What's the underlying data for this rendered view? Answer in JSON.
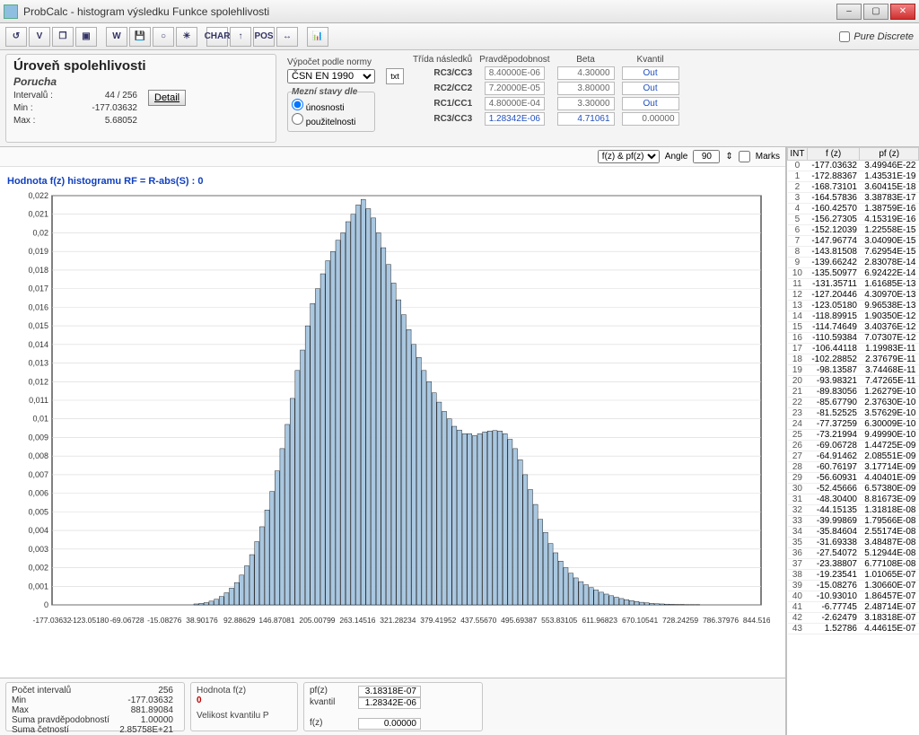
{
  "window": {
    "title": "ProbCalc - histogram výsledku Funkce spolehlivosti",
    "pure_discrete_label": "Pure Discrete"
  },
  "toolbar": {
    "buttons": [
      "↺",
      "V",
      "❐",
      "▣",
      "W",
      "💾",
      "○",
      "☀",
      "CHAR",
      "↑",
      "POS",
      "↔",
      "📊"
    ]
  },
  "reliability_panel": {
    "title": "Úroveň spolehlivosti",
    "subtitle": "Porucha",
    "rows": [
      {
        "label": "Intervalů :",
        "value": "44 / 256"
      },
      {
        "label": "Min :",
        "value": "-177.03632"
      },
      {
        "label": "Max :",
        "value": "5.68052"
      }
    ],
    "detail_label": "Detail"
  },
  "norm_panel": {
    "calc_label": "Výpočet podle normy",
    "norm_options": [
      "ČSN EN 1990"
    ],
    "norm_selected": "ČSN EN 1990",
    "limit_legend": "Mezní stavy dle",
    "opt_unosnosti": "únosnosti",
    "opt_pouzitelnosti": "použitelnosti",
    "txt_label": "txt"
  },
  "class_table": {
    "headers": [
      "Třída následků",
      "Pravděpodobnost",
      "Beta",
      "Kvantil"
    ],
    "rows": [
      {
        "label": "RC3/CC3",
        "p": "8.40000E-06",
        "beta": "4.30000",
        "k": "Out <Min,Max>"
      },
      {
        "label": "RC2/CC2",
        "p": "7.20000E-05",
        "beta": "3.80000",
        "k": "Out <Min,Max>"
      },
      {
        "label": "RC1/CC1",
        "p": "4.80000E-04",
        "beta": "3.30000",
        "k": "Out <Min,Max>"
      },
      {
        "label": "RC3/CC3",
        "p": "1.28342E-06",
        "beta": "4.71061",
        "k": "0.00000",
        "result": true
      }
    ]
  },
  "chart_toolbar": {
    "mode_label": "f(z) & pf(z)",
    "angle_label": "Angle",
    "angle_value": "90",
    "marks_label": "Marks"
  },
  "chart": {
    "title": "Hodnota f(z) histogramu RF = R-abs(S) : 0",
    "type": "histogram",
    "background_color": "#ffffff",
    "grid_color": "#d8d8d8",
    "bar_fill": "#a9c7e0",
    "bar_stroke": "#000000",
    "axis_color": "#000000",
    "ylim": [
      0,
      0.022
    ],
    "yticks": [
      0,
      0.001,
      0.002,
      0.003,
      0.004,
      0.005,
      0.006,
      0.007,
      0.008,
      0.009,
      0.01,
      0.011,
      0.012,
      0.013,
      0.014,
      0.015,
      0.016,
      0.017,
      0.018,
      0.019,
      0.02,
      0.021,
      0.022
    ],
    "xlim": [
      -177.03632,
      844.51694
    ],
    "xticks": [
      -177.03632,
      -123.0518,
      -69.06728,
      -15.08276,
      38.90176,
      92.88629,
      146.87081,
      205.00799,
      263.14516,
      321.28234,
      379.41952,
      437.5567,
      495.69387,
      553.83105,
      611.96823,
      670.10541,
      728.24259,
      786.37976,
      844.51694
    ],
    "bar_width": 0.9,
    "values": [
      0,
      0,
      0,
      0,
      0,
      0,
      0,
      0,
      0,
      0,
      0,
      0,
      0,
      0,
      0,
      0,
      0,
      0,
      0,
      0,
      0,
      0,
      0,
      0,
      0,
      0,
      0,
      0,
      5e-05,
      8e-05,
      0.00012,
      0.0002,
      0.0003,
      0.00045,
      0.00065,
      0.0009,
      0.0012,
      0.0016,
      0.0021,
      0.0027,
      0.0034,
      0.0042,
      0.0051,
      0.0061,
      0.0072,
      0.0084,
      0.0097,
      0.0111,
      0.0126,
      0.0137,
      0.015,
      0.0162,
      0.017,
      0.0178,
      0.0185,
      0.019,
      0.0196,
      0.02,
      0.0206,
      0.021,
      0.0215,
      0.0218,
      0.0213,
      0.0208,
      0.02,
      0.0192,
      0.0183,
      0.0173,
      0.0164,
      0.0156,
      0.0148,
      0.014,
      0.0133,
      0.0126,
      0.012,
      0.0114,
      0.0109,
      0.0104,
      0.01,
      0.0096,
      0.0094,
      0.0092,
      0.0092,
      0.0091,
      0.0092,
      0.0093,
      0.00935,
      0.00937,
      0.00935,
      0.0092,
      0.0089,
      0.0084,
      0.0078,
      0.007,
      0.0062,
      0.0054,
      0.0046,
      0.0039,
      0.0033,
      0.0028,
      0.00235,
      0.002,
      0.0017,
      0.00145,
      0.00125,
      0.00108,
      0.00093,
      0.0008,
      0.00068,
      0.00058,
      0.00049,
      0.00041,
      0.00034,
      0.00028,
      0.00023,
      0.00018,
      0.00014,
      0.00011,
      8e-05,
      6e-05,
      5e-05,
      4e-05,
      3e-05,
      2e-05,
      2e-05,
      1e-05,
      1e-05,
      1e-05,
      0,
      0,
      0,
      0,
      0,
      0,
      0,
      0,
      0,
      0,
      0,
      0
    ]
  },
  "bottom_stats": {
    "title": "",
    "rows": [
      {
        "label": "Počet intervalů",
        "value": "256"
      },
      {
        "label": "Min",
        "value": "-177.03632"
      },
      {
        "label": "Max",
        "value": "881.89084"
      },
      {
        "label": "Suma pravděpodobností",
        "value": "1.00000"
      },
      {
        "label": "Suma četností",
        "value": "2.85758E+21"
      }
    ]
  },
  "bottom_fz": {
    "title": "Hodnota f(z)",
    "value": "0",
    "kvantil_label": "Velikost kvantilu P",
    "pf_label": "pf(z)",
    "pf_value": "3.18318E-07",
    "kv_label": "kvantil",
    "kv_value": "1.28342E-06",
    "fz_label": "f(z)",
    "fz_value": "0.00000"
  },
  "data_table": {
    "headers": [
      "INT",
      "f (z)",
      "pf (z)"
    ],
    "rows": [
      [
        0,
        "-177.03632",
        "3.49946E-22"
      ],
      [
        1,
        "-172.88367",
        "1.43531E-19"
      ],
      [
        2,
        "-168.73101",
        "3.60415E-18"
      ],
      [
        3,
        "-164.57836",
        "3.38783E-17"
      ],
      [
        4,
        "-160.42570",
        "1.38759E-16"
      ],
      [
        5,
        "-156.27305",
        "4.15319E-16"
      ],
      [
        6,
        "-152.12039",
        "1.22558E-15"
      ],
      [
        7,
        "-147.96774",
        "3.04090E-15"
      ],
      [
        8,
        "-143.81508",
        "7.62954E-15"
      ],
      [
        9,
        "-139.66242",
        "2.83078E-14"
      ],
      [
        10,
        "-135.50977",
        "6.92422E-14"
      ],
      [
        11,
        "-131.35711",
        "1.61685E-13"
      ],
      [
        12,
        "-127.20446",
        "4.30970E-13"
      ],
      [
        13,
        "-123.05180",
        "9.96538E-13"
      ],
      [
        14,
        "-118.89915",
        "1.90350E-12"
      ],
      [
        15,
        "-114.74649",
        "3.40376E-12"
      ],
      [
        16,
        "-110.59384",
        "7.07307E-12"
      ],
      [
        17,
        "-106.44118",
        "1.19983E-11"
      ],
      [
        18,
        "-102.28852",
        "2.37679E-11"
      ],
      [
        19,
        "-98.13587",
        "3.74468E-11"
      ],
      [
        20,
        "-93.98321",
        "7.47265E-11"
      ],
      [
        21,
        "-89.83056",
        "1.26279E-10"
      ],
      [
        22,
        "-85.67790",
        "2.37630E-10"
      ],
      [
        23,
        "-81.52525",
        "3.57629E-10"
      ],
      [
        24,
        "-77.37259",
        "6.30009E-10"
      ],
      [
        25,
        "-73.21994",
        "9.49990E-10"
      ],
      [
        26,
        "-69.06728",
        "1.44725E-09"
      ],
      [
        27,
        "-64.91462",
        "2.08551E-09"
      ],
      [
        28,
        "-60.76197",
        "3.17714E-09"
      ],
      [
        29,
        "-56.60931",
        "4.40401E-09"
      ],
      [
        30,
        "-52.45666",
        "6.57380E-09"
      ],
      [
        31,
        "-48.30400",
        "8.81673E-09"
      ],
      [
        32,
        "-44.15135",
        "1.31818E-08"
      ],
      [
        33,
        "-39.99869",
        "1.79566E-08"
      ],
      [
        34,
        "-35.84604",
        "2.55174E-08"
      ],
      [
        35,
        "-31.69338",
        "3.48487E-08"
      ],
      [
        36,
        "-27.54072",
        "5.12944E-08"
      ],
      [
        37,
        "-23.38807",
        "6.77108E-08"
      ],
      [
        38,
        "-19.23541",
        "1.01065E-07"
      ],
      [
        39,
        "-15.08276",
        "1.30660E-07"
      ],
      [
        40,
        "-10.93010",
        "1.86457E-07"
      ],
      [
        41,
        "-6.77745",
        "2.48714E-07"
      ],
      [
        42,
        "-2.62479",
        "3.18318E-07"
      ],
      [
        43,
        "1.52786",
        "4.44615E-07"
      ]
    ]
  }
}
